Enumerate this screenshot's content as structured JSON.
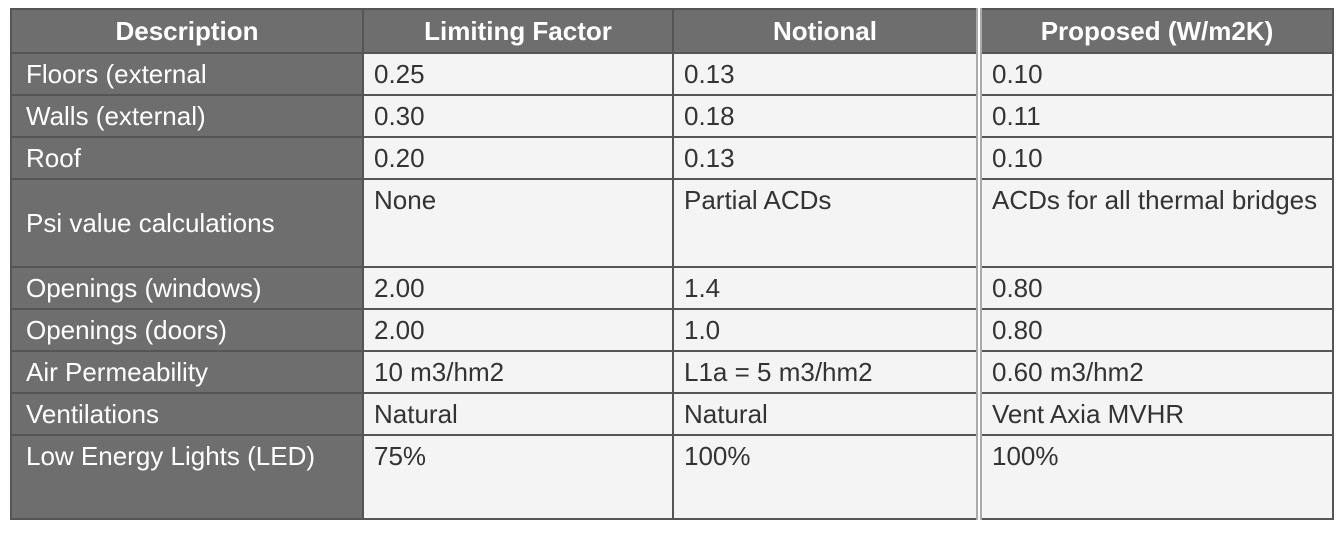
{
  "table": {
    "header": [
      "Description",
      "Limiting Factor",
      "Notional",
      "Proposed (W/m2K)"
    ],
    "rows": [
      [
        "Floors (external",
        "0.25",
        "0.13",
        "0.10"
      ],
      [
        "Walls (external)",
        "0.30",
        "0.18",
        "0.11"
      ],
      [
        "Roof",
        "0.20",
        "0.13",
        "0.10"
      ],
      [
        "Psi value calculations",
        "None",
        "Partial ACDs",
        "ACDs for all thermal bridges"
      ],
      [
        "Openings (windows)",
        "2.00",
        "1.4",
        "0.80"
      ],
      [
        "Openings (doors)",
        "2.00",
        "1.0",
        "0.80"
      ],
      [
        "Air Permeability",
        "10 m3/hm2",
        "L1a = 5 m3/hm2",
        "0.60 m3/hm2"
      ],
      [
        "Ventilations",
        "Natural",
        "Natural",
        "Vent Axia MVHR"
      ],
      [
        "Low Energy Lights (LED)",
        "75%",
        "100%",
        "100%"
      ]
    ]
  }
}
